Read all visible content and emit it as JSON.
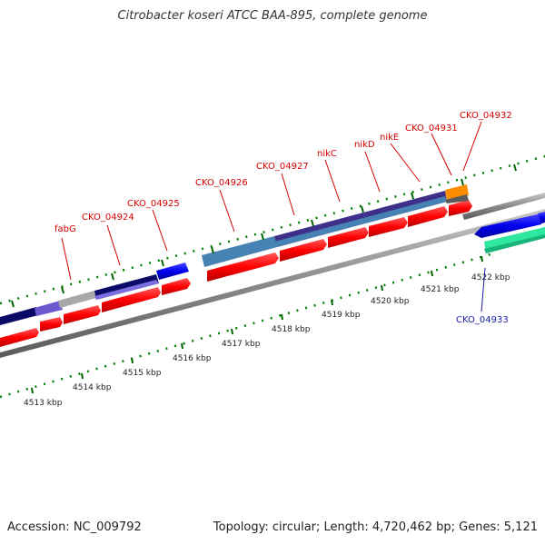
{
  "title": "Citrobacter koseri ATCC BAA-895, complete genome",
  "footer": {
    "accession": "Accession: NC_009792",
    "summary": "Topology: circular; Length: 4,720,462 bp; Genes: 5,121"
  },
  "colors": {
    "forward_cds": "#ff0000",
    "reverse_cds": "#0000ee",
    "feature_navy": "#0a0a66",
    "feature_purple": "#6a5acd",
    "feature_steel": "#4682b4",
    "feature_orange": "#ff8c00",
    "feature_aqua": "#2ee8a0",
    "backbone": "#808080",
    "tick": "#008000",
    "label_forward": "#d40000",
    "label_reverse": "#1a1aa8"
  },
  "scale_labels": [
    "4513 kbp",
    "4514 kbp",
    "4515 kbp",
    "4516 kbp",
    "4517 kbp",
    "4518 kbp",
    "4519 kbp",
    "4520 kbp",
    "4521 kbp",
    "4522 kbp"
  ],
  "gene_labels": [
    {
      "name": "fabG",
      "strand": "forward"
    },
    {
      "name": "CKO_04924",
      "strand": "forward"
    },
    {
      "name": "CKO_04925",
      "strand": "forward"
    },
    {
      "name": "CKO_04926",
      "strand": "forward"
    },
    {
      "name": "CKO_04927",
      "strand": "forward"
    },
    {
      "name": "nikC",
      "strand": "forward"
    },
    {
      "name": "nikD",
      "strand": "forward"
    },
    {
      "name": "nikE",
      "strand": "forward"
    },
    {
      "name": "CKO_04931",
      "strand": "forward"
    },
    {
      "name": "CKO_04932",
      "strand": "forward"
    },
    {
      "name": "CKO_04933",
      "strand": "reverse"
    }
  ]
}
